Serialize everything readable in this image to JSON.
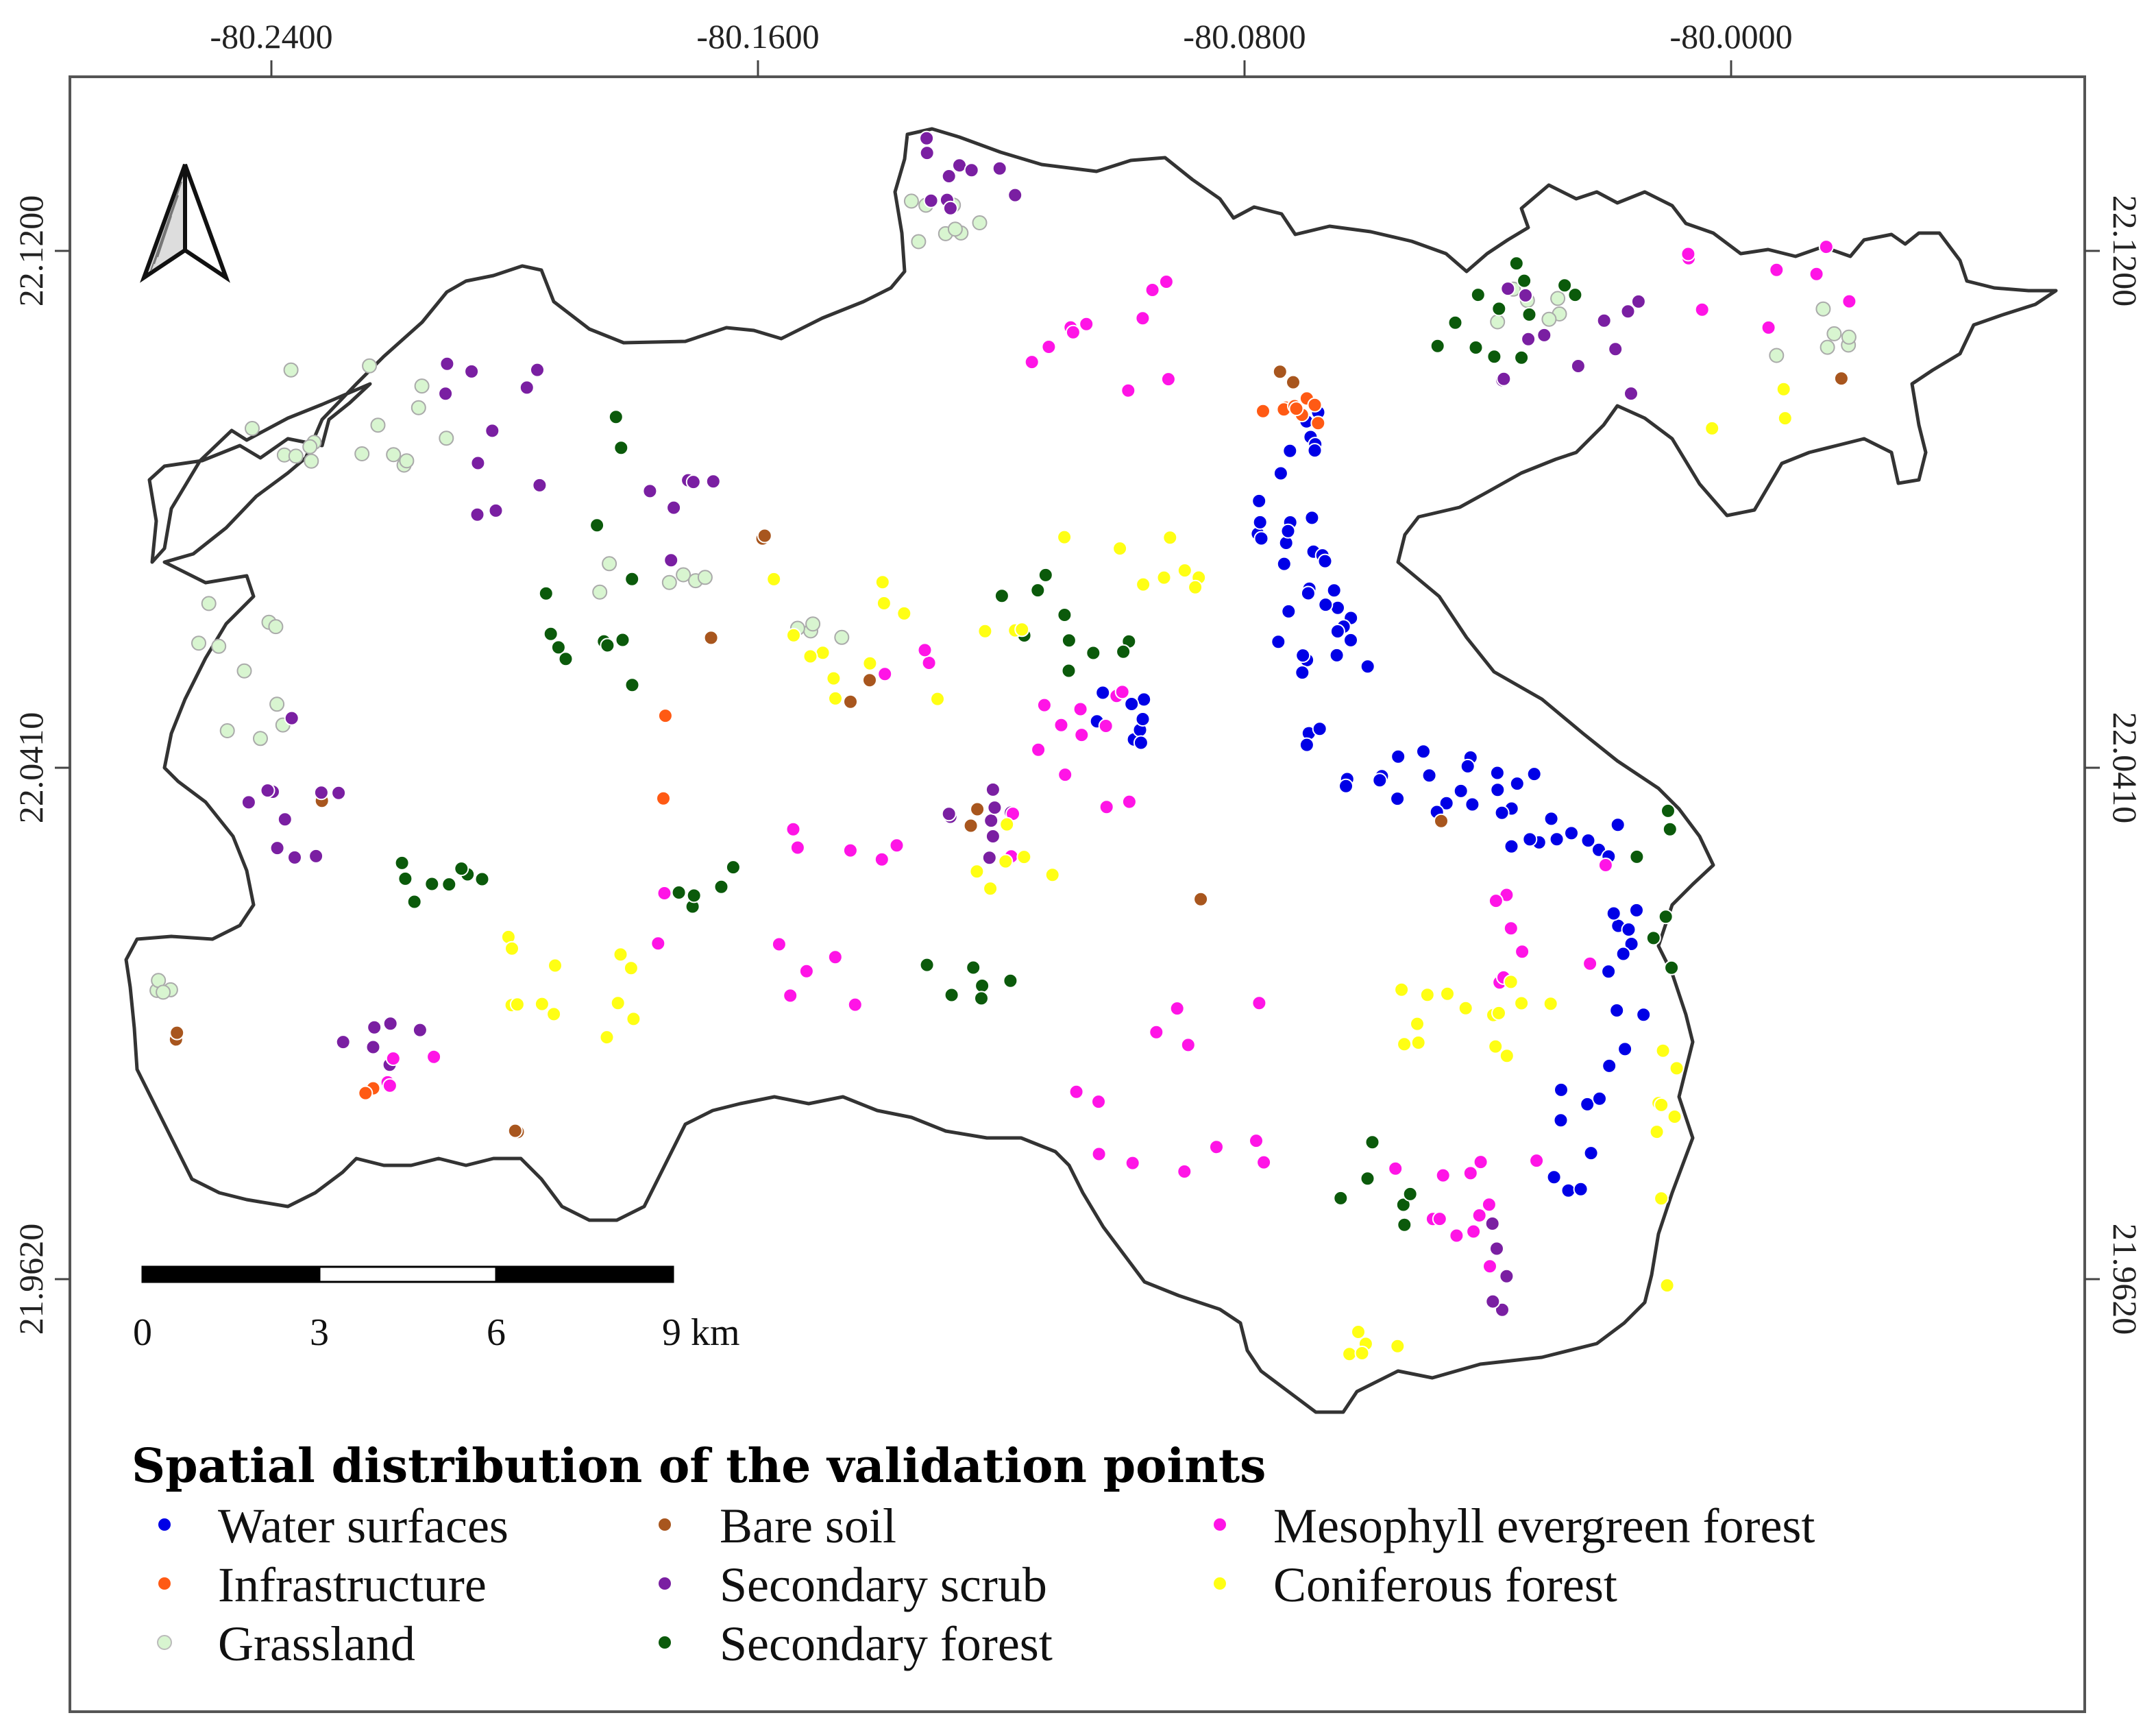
{
  "map": {
    "top_ticks": [
      "-80.2400",
      "-80.1600",
      "-80.0800",
      "-80.0000"
    ],
    "left_ticks": [
      "22.1200",
      "22.0410",
      "21.9620"
    ],
    "right_ticks": [
      "22.1200",
      "22.0410",
      "21.9620"
    ],
    "north_arrow_icon": "north-arrow-icon",
    "boundary_color": "#333333"
  },
  "scale_bar": {
    "labels": [
      "0",
      "3",
      "6",
      "9 km"
    ]
  },
  "legend": {
    "title": "Spatial distribution of the validation points",
    "items": [
      {
        "label": "Water surfaces",
        "color": "#0000e6"
      },
      {
        "label": "Infrastructure",
        "color": "#ff5a14"
      },
      {
        "label": "Grassland",
        "color": "#d8f5d0"
      },
      {
        "label": "Bare soil",
        "color": "#a8561e"
      },
      {
        "label": "Secondary scrub",
        "color": "#7a1fa2"
      },
      {
        "label": "Secondary forest",
        "color": "#0b5a0b"
      },
      {
        "label": "Mesophyll evergreen forest",
        "color": "#ff14e6"
      },
      {
        "label": "Coniferous forest",
        "color": "#ffff14"
      }
    ]
  }
}
